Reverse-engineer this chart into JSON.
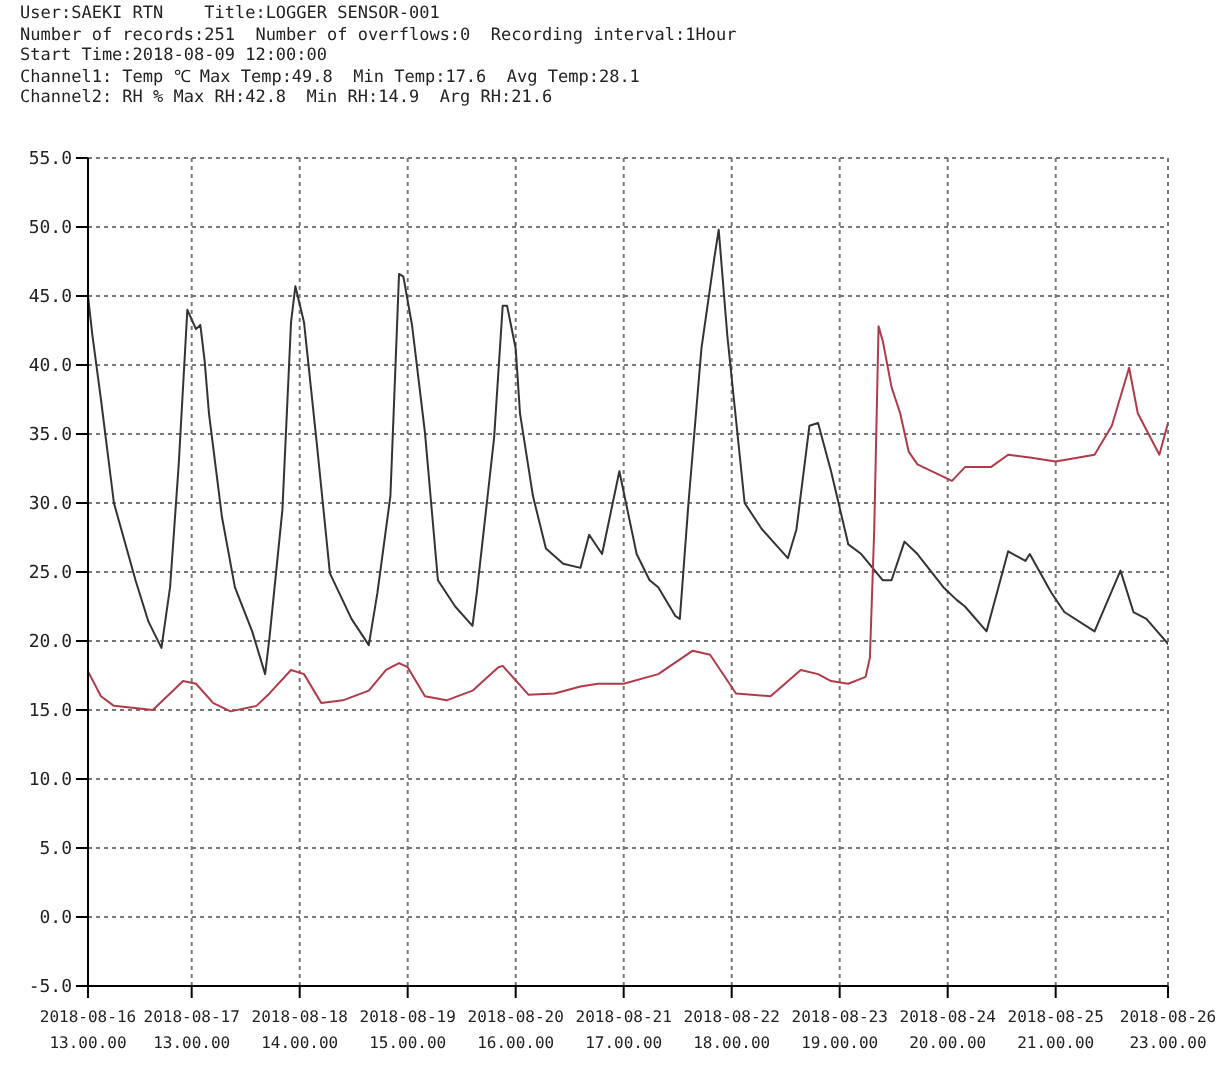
{
  "chart_data": {
    "type": "line",
    "title": "User:SAEKI RTN    Title:LOGGER SENSOR-001",
    "annotations": [
      "Number of records:251  Number of overflows:0  Recording interval:1Hour",
      "Start Time:2018-08-09 12:00:00",
      "Channel1: Temp ℃ Max Temp:49.8  Min Temp:17.6  Avg Temp:28.1",
      "Channel2: RH % Max RH:42.8  Min RH:14.9  Arg RH:21.6"
    ],
    "series": [
      {
        "color": "#333333",
        "x": [
          "2018-08-16T13:00",
          "2018-08-16T14:00",
          "2018-08-16T16:00",
          "2018-08-16T19:00",
          "2018-08-17T00:00",
          "2018-08-17T03:00",
          "2018-08-17T06:00",
          "2018-08-17T08:00",
          "2018-08-17T10:00",
          "2018-08-17T12:00",
          "2018-08-17T14:00",
          "2018-08-17T15:00",
          "2018-08-17T16:00",
          "2018-08-17T17:00",
          "2018-08-17T20:00",
          "2018-08-17T23:00",
          "2018-08-18T03:00",
          "2018-08-18T06:00",
          "2018-08-18T07:00",
          "2018-08-18T10:00",
          "2018-08-18T12:00",
          "2018-08-18T13:00",
          "2018-08-18T15:00",
          "2018-08-18T18:00",
          "2018-08-18T21:00",
          "2018-08-19T02:00",
          "2018-08-19T06:00",
          "2018-08-19T08:00",
          "2018-08-19T11:00",
          "2018-08-19T13:00",
          "2018-08-19T14:00",
          "2018-08-19T16:00",
          "2018-08-19T19:00",
          "2018-08-19T22:00",
          "2018-08-20T02:00",
          "2018-08-20T06:00",
          "2018-08-20T07:00",
          "2018-08-20T11:00",
          "2018-08-20T13:00",
          "2018-08-20T14:00",
          "2018-08-20T16:00",
          "2018-08-20T17:00",
          "2018-08-20T20:00",
          "2018-08-20T23:00",
          "2018-08-21T03:00",
          "2018-08-21T07:00",
          "2018-08-21T09:00",
          "2018-08-21T12:00",
          "2018-08-21T16:00",
          "2018-08-21T20:00",
          "2018-08-21T23:00",
          "2018-08-22T01:00",
          "2018-08-22T05:00",
          "2018-08-22T06:00",
          "2018-08-22T08:00",
          "2018-08-22T11:00",
          "2018-08-22T14:00",
          "2018-08-22T15:00",
          "2018-08-22T17:00",
          "2018-08-22T21:00",
          "2018-08-23T01:00",
          "2018-08-23T07:00",
          "2018-08-23T09:00",
          "2018-08-23T12:00",
          "2018-08-23T14:00",
          "2018-08-23T17:00",
          "2018-08-23T21:00",
          "2018-08-24T00:00",
          "2018-08-24T05:00",
          "2018-08-24T07:00",
          "2018-08-24T10:00",
          "2018-08-24T13:00",
          "2018-08-24T19:00",
          "2018-08-24T22:00",
          "2018-08-25T00:00",
          "2018-08-25T05:00",
          "2018-08-25T10:00",
          "2018-08-25T14:00",
          "2018-08-25T15:00",
          "2018-08-25T20:00",
          "2018-08-25T23:00",
          "2018-08-26T06:00",
          "2018-08-26T12:00",
          "2018-08-26T15:00",
          "2018-08-26T18:00",
          "2018-08-26T23:00"
        ],
        "values": [
          45,
          42.2,
          37.5,
          30,
          24.4,
          21.4,
          19.5,
          23.9,
          32.8,
          44,
          42.6,
          42.9,
          40.3,
          36.5,
          29,
          23.9,
          20.7,
          17.6,
          20.2,
          29.5,
          43.1,
          45.7,
          43.1,
          34.2,
          24.9,
          21.6,
          19.7,
          23.5,
          30.5,
          46.6,
          46.4,
          42.9,
          35.1,
          24.4,
          22.5,
          21.1,
          23.5,
          34.7,
          44.3,
          44.3,
          41.2,
          36.5,
          30.5,
          26.7,
          25.6,
          25.3,
          27.7,
          26.3,
          32.3,
          26.3,
          24.4,
          23.9,
          21.8,
          21.6,
          30,
          41.2,
          47.8,
          49.8,
          42.1,
          30,
          28.1,
          26,
          28.1,
          35.6,
          35.8,
          32.3,
          27,
          26.3,
          24.4,
          24.4,
          27.2,
          26.3,
          23.9,
          23,
          22.5,
          20.7,
          26.5,
          25.8,
          26.3,
          23.5,
          22.1,
          20.7,
          25.1,
          22.1,
          21.6,
          19.8
        ]
      },
      {
        "color": "#b03a48",
        "x": [
          "2018-08-16T13:00",
          "2018-08-16T16:00",
          "2018-08-16T19:00",
          "2018-08-17T04:00",
          "2018-08-17T08:00",
          "2018-08-17T11:00",
          "2018-08-17T14:00",
          "2018-08-17T18:00",
          "2018-08-17T22:00",
          "2018-08-18T04:00",
          "2018-08-18T07:00",
          "2018-08-18T12:00",
          "2018-08-18T15:00",
          "2018-08-18T19:00",
          "2018-08-19T00:00",
          "2018-08-19T06:00",
          "2018-08-19T10:00",
          "2018-08-19T13:00",
          "2018-08-19T15:00",
          "2018-08-19T19:00",
          "2018-08-20T00:00",
          "2018-08-20T06:00",
          "2018-08-20T12:00",
          "2018-08-20T13:00",
          "2018-08-20T19:00",
          "2018-08-21T01:00",
          "2018-08-21T07:00",
          "2018-08-21T11:00",
          "2018-08-21T17:00",
          "2018-08-22T01:00",
          "2018-08-22T09:00",
          "2018-08-22T13:00",
          "2018-08-22T19:00",
          "2018-08-23T03:00",
          "2018-08-23T10:00",
          "2018-08-23T14:00",
          "2018-08-23T17:00",
          "2018-08-23T21:00",
          "2018-08-24T01:00",
          "2018-08-24T02:00",
          "2018-08-24T03:00",
          "2018-08-24T04:00",
          "2018-08-24T05:00",
          "2018-08-24T07:00",
          "2018-08-24T09:00",
          "2018-08-24T11:00",
          "2018-08-24T13:00",
          "2018-08-24T21:00",
          "2018-08-25T00:00",
          "2018-08-25T06:00",
          "2018-08-25T10:00",
          "2018-08-25T15:00",
          "2018-08-25T21:00",
          "2018-08-26T06:00",
          "2018-08-26T10:00",
          "2018-08-26T14:00",
          "2018-08-26T16:00",
          "2018-08-26T21:00",
          "2018-08-26T23:00"
        ],
        "values": [
          17.8,
          16,
          15.3,
          15,
          16.2,
          17.1,
          16.9,
          15.5,
          14.9,
          15.3,
          16.2,
          17.9,
          17.6,
          15.5,
          15.7,
          16.4,
          17.9,
          18.4,
          18.1,
          16,
          15.7,
          16.4,
          18.1,
          18.2,
          16.1,
          16.2,
          16.7,
          16.9,
          16.9,
          17.6,
          19.3,
          19,
          16.2,
          16,
          17.9,
          17.6,
          17.1,
          16.9,
          17.4,
          18.8,
          28.1,
          42.8,
          41.7,
          38.4,
          36.5,
          33.7,
          32.8,
          31.6,
          32.6,
          32.6,
          33.5,
          33.3,
          33,
          33.5,
          35.6,
          39.8,
          36.5,
          33.5,
          35.8
        ]
      }
    ],
    "xlim": [
      "2018-08-16T13:00",
      "2018-08-26T23:00"
    ],
    "xticks": [
      {
        "value": "2018-08-16T13:00",
        "label": "2018-08-16 13.00.00"
      },
      {
        "value": "2018-08-17T13:00",
        "label": "2018-08-17 13.00.00"
      },
      {
        "value": "2018-08-18T14:00",
        "label": "2018-08-18 14.00.00"
      },
      {
        "value": "2018-08-19T15:00",
        "label": "2018-08-19 15.00.00"
      },
      {
        "value": "2018-08-20T16:00",
        "label": "2018-08-20 16.00.00"
      },
      {
        "value": "2018-08-21T17:00",
        "label": "2018-08-21 17.00.00"
      },
      {
        "value": "2018-08-22T18:00",
        "label": "2018-08-22 18.00.00"
      },
      {
        "value": "2018-08-23T19:00",
        "label": "2018-08-23 19.00.00"
      },
      {
        "value": "2018-08-24T20:00",
        "label": "2018-08-24 20.00.00"
      },
      {
        "value": "2018-08-25T21:00",
        "label": "2018-08-25 21.00.00"
      },
      {
        "value": "2018-08-26T23:00",
        "label": "2018-08-26 23.00.00"
      }
    ],
    "ylim": [
      -5,
      55
    ],
    "yticks": [
      {
        "value": -5,
        "label": "-5.0"
      },
      {
        "value": 0,
        "label": "0.0"
      },
      {
        "value": 5,
        "label": "5.0"
      },
      {
        "value": 10,
        "label": "10.0"
      },
      {
        "value": 15,
        "label": "15.0"
      },
      {
        "value": 20,
        "label": "20.0"
      },
      {
        "value": 25,
        "label": "25.0"
      },
      {
        "value": 30,
        "label": "30.0"
      },
      {
        "value": 35,
        "label": "35.0"
      },
      {
        "value": 40,
        "label": "40.0"
      },
      {
        "value": 45,
        "label": "45.0"
      },
      {
        "value": 50,
        "label": "50.0"
      },
      {
        "value": 55,
        "label": "55.0"
      }
    ],
    "grid": true,
    "marker": "none",
    "line_style": "solid"
  }
}
